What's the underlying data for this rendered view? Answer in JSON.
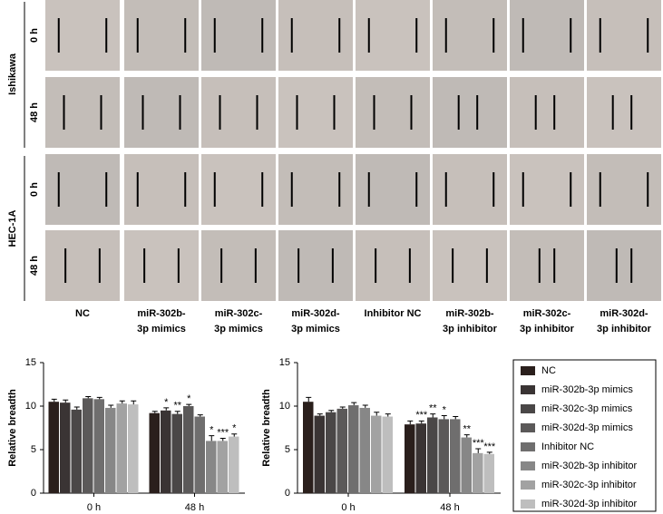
{
  "panel": {
    "rows": [
      {
        "label": "Ishikawa",
        "times": [
          "0 h",
          "48 h"
        ]
      },
      {
        "label": "HEC-1A",
        "times": [
          "0 h",
          "48 h"
        ]
      }
    ],
    "columns": [
      [
        "NC"
      ],
      [
        "miR-302b-",
        "3p mimics"
      ],
      [
        "miR-302c-",
        "3p mimics"
      ],
      [
        "miR-302d-",
        "3p mimics"
      ],
      [
        "Inhibitor NC"
      ],
      [
        "miR-302b-",
        "3p inhibitor"
      ],
      [
        "miR-302c-",
        "3p inhibitor"
      ],
      [
        "miR-302d-",
        "3p inhibitor"
      ]
    ]
  },
  "legend": [
    {
      "name": "NC",
      "color": "#2a1f1c"
    },
    {
      "name": "miR-302b-3p mimics",
      "color": "#3a3434"
    },
    {
      "name": "miR-302c-3p mimics",
      "color": "#4a4747"
    },
    {
      "name": "miR-302d-3p mimics",
      "color": "#5b5959"
    },
    {
      "name": "Inhibitor NC",
      "color": "#6f6e6e"
    },
    {
      "name": "miR-302b-3p inhibitor",
      "color": "#878787"
    },
    {
      "name": "miR-302c-3p inhibitor",
      "color": "#a2a2a2"
    },
    {
      "name": "miR-302d-3p inhibitor",
      "color": "#bebebe"
    }
  ],
  "chart_data": [
    {
      "type": "bar",
      "ylabel": "Relative breadth",
      "categories": [
        "0 h",
        "48 h"
      ],
      "ylim": [
        0,
        15
      ],
      "yticks": [
        0,
        5,
        10,
        15
      ],
      "series": [
        {
          "values": [
            10.5,
            9.2
          ],
          "errors": [
            0.3,
            0.2
          ],
          "significance": [
            null,
            null
          ]
        },
        {
          "values": [
            10.4,
            9.5
          ],
          "errors": [
            0.3,
            0.3
          ],
          "significance": [
            null,
            "*"
          ]
        },
        {
          "values": [
            9.6,
            9.1
          ],
          "errors": [
            0.3,
            0.3
          ],
          "significance": [
            null,
            "**"
          ]
        },
        {
          "values": [
            10.9,
            10.0
          ],
          "errors": [
            0.2,
            0.2
          ],
          "significance": [
            null,
            "*"
          ]
        },
        {
          "values": [
            10.8,
            8.8
          ],
          "errors": [
            0.2,
            0.2
          ],
          "significance": [
            null,
            null
          ]
        },
        {
          "values": [
            9.8,
            6.0
          ],
          "errors": [
            0.3,
            0.6
          ],
          "significance": [
            null,
            "*"
          ]
        },
        {
          "values": [
            10.3,
            6.0
          ],
          "errors": [
            0.3,
            0.3
          ],
          "significance": [
            null,
            "***"
          ]
        },
        {
          "values": [
            10.2,
            6.5
          ],
          "errors": [
            0.4,
            0.3
          ],
          "significance": [
            null,
            "*"
          ]
        }
      ]
    },
    {
      "type": "bar",
      "ylabel": "Relative breadth",
      "categories": [
        "0 h",
        "48 h"
      ],
      "ylim": [
        0,
        15
      ],
      "yticks": [
        0,
        5,
        10,
        15
      ],
      "series": [
        {
          "values": [
            10.5,
            7.9
          ],
          "errors": [
            0.5,
            0.4
          ],
          "significance": [
            null,
            null
          ]
        },
        {
          "values": [
            8.9,
            8.0
          ],
          "errors": [
            0.2,
            0.3
          ],
          "significance": [
            null,
            "***"
          ]
        },
        {
          "values": [
            9.3,
            8.7
          ],
          "errors": [
            0.2,
            0.4
          ],
          "significance": [
            null,
            "**"
          ]
        },
        {
          "values": [
            9.7,
            8.5
          ],
          "errors": [
            0.2,
            0.4
          ],
          "significance": [
            null,
            "*"
          ]
        },
        {
          "values": [
            10.1,
            8.5
          ],
          "errors": [
            0.3,
            0.3
          ],
          "significance": [
            null,
            null
          ]
        },
        {
          "values": [
            9.8,
            6.4
          ],
          "errors": [
            0.3,
            0.3
          ],
          "significance": [
            null,
            "**"
          ]
        },
        {
          "values": [
            8.9,
            4.6
          ],
          "errors": [
            0.4,
            0.5
          ],
          "significance": [
            null,
            "***"
          ]
        },
        {
          "values": [
            8.8,
            4.5
          ],
          "errors": [
            0.3,
            0.2
          ],
          "significance": [
            null,
            "***"
          ]
        }
      ]
    }
  ]
}
